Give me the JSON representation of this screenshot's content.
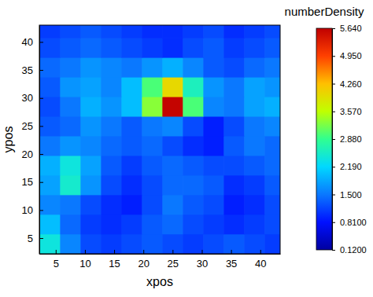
{
  "chart_data": {
    "type": "heatmap",
    "x_label": "xpos",
    "y_label": "ypos",
    "x": [
      4,
      7.5,
      11,
      14.5,
      18,
      21.5,
      25,
      28.5,
      32,
      35.5,
      39,
      42.5
    ],
    "y": [
      4,
      7.5,
      11,
      14.5,
      18,
      21.5,
      25,
      28.5,
      32,
      35.5,
      39,
      42.5
    ],
    "z": [
      [
        2.4,
        1.6,
        1.2,
        1.1,
        1.2,
        1.3,
        1.2,
        1.1,
        1.2,
        1.3,
        1.2,
        1.1
      ],
      [
        2.0,
        1.4,
        1.1,
        1.0,
        1.1,
        1.3,
        1.4,
        1.2,
        1.1,
        1.0,
        1.1,
        1.2
      ],
      [
        1.6,
        1.5,
        1.2,
        1.0,
        0.9,
        1.2,
        1.5,
        1.3,
        1.2,
        0.9,
        1.0,
        1.2
      ],
      [
        1.8,
        2.5,
        1.7,
        1.2,
        1.0,
        1.2,
        1.4,
        1.4,
        1.3,
        1.0,
        1.1,
        1.3
      ],
      [
        1.9,
        2.4,
        1.8,
        1.3,
        1.1,
        1.3,
        1.4,
        1.3,
        1.2,
        1.2,
        1.3,
        1.4
      ],
      [
        1.5,
        1.7,
        1.6,
        1.4,
        1.3,
        1.4,
        1.2,
        1.0,
        0.9,
        1.3,
        1.5,
        1.4
      ],
      [
        1.3,
        1.4,
        1.7,
        1.5,
        1.3,
        1.5,
        1.6,
        1.2,
        0.9,
        1.2,
        1.5,
        1.6
      ],
      [
        1.2,
        1.5,
        1.9,
        1.7,
        2.0,
        3.3,
        5.6,
        3.0,
        1.6,
        1.5,
        1.8,
        1.9
      ],
      [
        1.3,
        1.7,
        1.8,
        1.6,
        2.0,
        3.0,
        4.0,
        2.6,
        1.7,
        1.5,
        1.8,
        1.7
      ],
      [
        1.4,
        1.5,
        1.7,
        1.6,
        1.5,
        1.7,
        1.9,
        1.6,
        1.3,
        1.2,
        1.4,
        1.5
      ],
      [
        1.2,
        1.3,
        1.4,
        1.3,
        1.2,
        1.1,
        1.0,
        1.2,
        1.3,
        1.1,
        1.2,
        1.3
      ],
      [
        1.1,
        1.2,
        1.3,
        1.2,
        1.1,
        1.0,
        1.0,
        1.1,
        1.2,
        1.0,
        1.1,
        1.2
      ]
    ],
    "xlim": [
      2.2,
      43.4
    ],
    "ylim": [
      2.2,
      43
    ],
    "xticks": [
      5,
      10,
      15,
      20,
      25,
      30,
      35,
      40
    ],
    "yticks": [
      5,
      10,
      15,
      20,
      25,
      30,
      35,
      40
    ],
    "colorbar": {
      "title": "numberDensity",
      "range": [
        0.12,
        5.64
      ],
      "ticks": [
        {
          "value": 0.12,
          "label": "0.1200"
        },
        {
          "value": 0.81,
          "label": "0.8100"
        },
        {
          "value": 1.5,
          "label": "1.500"
        },
        {
          "value": 2.19,
          "label": "2.190"
        },
        {
          "value": 2.88,
          "label": "2.880"
        },
        {
          "value": 3.57,
          "label": "3.570"
        },
        {
          "value": 4.26,
          "label": "4.260"
        },
        {
          "value": 4.95,
          "label": "4.950"
        },
        {
          "value": 5.64,
          "label": "5.640"
        }
      ]
    }
  }
}
